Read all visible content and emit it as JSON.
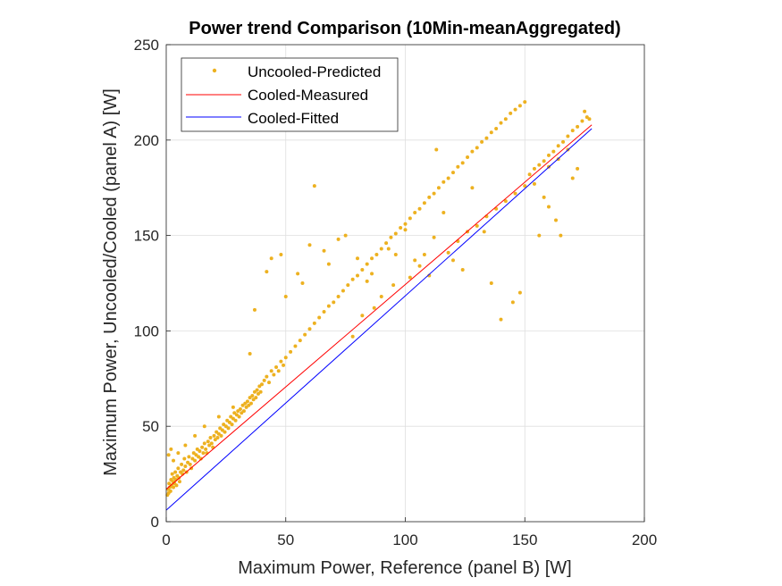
{
  "chart_data": {
    "type": "scatter",
    "title": "Power trend Comparison (10Min-meanAggregated)",
    "xlabel": "Maximum Power, Reference (panel B) [W]",
    "ylabel": "Maximum Power, Uncooled/Cooled (panel A) [W]",
    "xlim": [
      0,
      200
    ],
    "ylim": [
      0,
      250
    ],
    "xticks": [
      0,
      50,
      100,
      150,
      200
    ],
    "yticks": [
      0,
      50,
      100,
      150,
      200,
      250
    ],
    "grid": true,
    "legend_position": "top-left",
    "series": [
      {
        "name": "Uncooled-Predicted",
        "kind": "scatter",
        "color": "#EDB120",
        "points": [
          [
            0.5,
            14
          ],
          [
            0.8,
            17
          ],
          [
            1.0,
            15
          ],
          [
            1.2,
            20
          ],
          [
            1.5,
            18
          ],
          [
            1.8,
            16
          ],
          [
            2.0,
            22
          ],
          [
            2.2,
            19
          ],
          [
            2.5,
            25
          ],
          [
            2.8,
            21
          ],
          [
            3.0,
            18
          ],
          [
            3.2,
            23
          ],
          [
            3.5,
            20
          ],
          [
            3.8,
            26
          ],
          [
            4.0,
            22
          ],
          [
            4.3,
            19
          ],
          [
            4.6,
            24
          ],
          [
            5.0,
            28
          ],
          [
            5.3,
            23
          ],
          [
            5.6,
            21
          ],
          [
            6.0,
            26
          ],
          [
            6.4,
            30
          ],
          [
            6.8,
            25
          ],
          [
            7.2,
            27
          ],
          [
            7.6,
            33
          ],
          [
            8.0,
            29
          ],
          [
            8.5,
            26
          ],
          [
            9.0,
            31
          ],
          [
            9.5,
            34
          ],
          [
            10.0,
            30
          ],
          [
            10.5,
            28
          ],
          [
            11.0,
            33
          ],
          [
            11.5,
            36
          ],
          [
            12.0,
            32
          ],
          [
            12.5,
            35
          ],
          [
            13.0,
            38
          ],
          [
            13.5,
            34
          ],
          [
            14.0,
            37
          ],
          [
            14.5,
            33
          ],
          [
            15.0,
            39
          ],
          [
            15.5,
            36
          ],
          [
            16.0,
            41
          ],
          [
            16.5,
            38
          ],
          [
            17.0,
            36
          ],
          [
            17.5,
            42
          ],
          [
            18.0,
            40
          ],
          [
            18.5,
            44
          ],
          [
            19.0,
            41
          ],
          [
            19.5,
            39
          ],
          [
            20.0,
            45
          ],
          [
            20.5,
            43
          ],
          [
            21.0,
            47
          ],
          [
            21.5,
            44
          ],
          [
            22.0,
            46
          ],
          [
            22.5,
            49
          ],
          [
            23.0,
            45
          ],
          [
            23.5,
            48
          ],
          [
            24.0,
            51
          ],
          [
            24.5,
            47
          ],
          [
            25.0,
            50
          ],
          [
            25.5,
            53
          ],
          [
            26.0,
            49
          ],
          [
            26.5,
            52
          ],
          [
            27.0,
            55
          ],
          [
            27.5,
            51
          ],
          [
            28.0,
            54
          ],
          [
            28.5,
            57
          ],
          [
            29.0,
            53
          ],
          [
            29.5,
            56
          ],
          [
            30.0,
            58
          ],
          [
            30.5,
            55
          ],
          [
            31.0,
            59
          ],
          [
            31.5,
            57
          ],
          [
            32.0,
            61
          ],
          [
            32.5,
            58
          ],
          [
            33.0,
            62
          ],
          [
            33.5,
            60
          ],
          [
            34.0,
            63
          ],
          [
            34.5,
            61
          ],
          [
            35.0,
            65
          ],
          [
            35.5,
            62
          ],
          [
            36.0,
            66
          ],
          [
            36.5,
            64
          ],
          [
            37.0,
            68
          ],
          [
            37.5,
            65
          ],
          [
            38.0,
            69
          ],
          [
            38.5,
            67
          ],
          [
            39.0,
            71
          ],
          [
            39.5,
            68
          ],
          [
            40.0,
            72
          ],
          [
            41,
            74
          ],
          [
            42,
            76
          ],
          [
            43,
            73
          ],
          [
            44,
            79
          ],
          [
            45,
            77
          ],
          [
            46,
            81
          ],
          [
            47,
            79
          ],
          [
            48,
            84
          ],
          [
            49,
            82
          ],
          [
            50,
            86
          ],
          [
            52,
            89
          ],
          [
            54,
            92
          ],
          [
            56,
            95
          ],
          [
            58,
            98
          ],
          [
            60,
            101
          ],
          [
            62,
            104
          ],
          [
            64,
            107
          ],
          [
            66,
            110
          ],
          [
            68,
            113
          ],
          [
            70,
            115
          ],
          [
            72,
            118
          ],
          [
            74,
            121
          ],
          [
            76,
            124
          ],
          [
            78,
            127
          ],
          [
            80,
            129
          ],
          [
            82,
            132
          ],
          [
            84,
            135
          ],
          [
            86,
            138
          ],
          [
            88,
            140
          ],
          [
            90,
            143
          ],
          [
            92,
            146
          ],
          [
            94,
            149
          ],
          [
            96,
            151
          ],
          [
            98,
            154
          ],
          [
            100,
            156
          ],
          [
            102,
            159
          ],
          [
            104,
            162
          ],
          [
            106,
            164
          ],
          [
            108,
            167
          ],
          [
            110,
            170
          ],
          [
            112,
            172
          ],
          [
            114,
            175
          ],
          [
            116,
            178
          ],
          [
            118,
            180
          ],
          [
            120,
            183
          ],
          [
            122,
            186
          ],
          [
            124,
            188
          ],
          [
            126,
            191
          ],
          [
            128,
            194
          ],
          [
            130,
            196
          ],
          [
            132,
            199
          ],
          [
            134,
            201
          ],
          [
            136,
            204
          ],
          [
            138,
            206
          ],
          [
            140,
            209
          ],
          [
            142,
            211
          ],
          [
            144,
            214
          ],
          [
            146,
            216
          ],
          [
            148,
            218
          ],
          [
            150,
            220
          ],
          [
            152,
            182
          ],
          [
            154,
            185
          ],
          [
            156,
            187
          ],
          [
            158,
            189
          ],
          [
            160,
            192
          ],
          [
            162,
            194
          ],
          [
            164,
            197
          ],
          [
            166,
            199
          ],
          [
            168,
            202
          ],
          [
            170,
            205
          ],
          [
            172,
            207
          ],
          [
            174,
            210
          ],
          [
            176,
            212
          ],
          [
            177,
            211
          ],
          [
            175,
            215
          ],
          [
            1,
            35
          ],
          [
            2,
            38
          ],
          [
            3,
            32
          ],
          [
            5,
            36
          ],
          [
            8,
            40
          ],
          [
            12,
            45
          ],
          [
            16,
            50
          ],
          [
            22,
            55
          ],
          [
            28,
            60
          ],
          [
            35,
            88
          ],
          [
            37,
            111
          ],
          [
            42,
            131
          ],
          [
            44,
            138
          ],
          [
            48,
            140
          ],
          [
            50,
            118
          ],
          [
            55,
            130
          ],
          [
            57,
            125
          ],
          [
            60,
            145
          ],
          [
            62,
            176
          ],
          [
            66,
            142
          ],
          [
            68,
            135
          ],
          [
            72,
            148
          ],
          [
            75,
            150
          ],
          [
            80,
            138
          ],
          [
            84,
            126
          ],
          [
            86,
            130
          ],
          [
            93,
            143
          ],
          [
            96,
            140
          ],
          [
            100,
            153
          ],
          [
            104,
            137
          ],
          [
            108,
            140
          ],
          [
            112,
            149
          ],
          [
            113,
            195
          ],
          [
            116,
            162
          ],
          [
            120,
            137
          ],
          [
            124,
            132
          ],
          [
            128,
            175
          ],
          [
            130,
            155
          ],
          [
            133,
            152
          ],
          [
            136,
            125
          ],
          [
            140,
            106
          ],
          [
            145,
            115
          ],
          [
            148,
            120
          ],
          [
            156,
            150
          ],
          [
            158,
            170
          ],
          [
            160,
            165
          ],
          [
            163,
            158
          ],
          [
            165,
            150
          ],
          [
            170,
            180
          ],
          [
            172,
            185
          ],
          [
            78,
            97
          ],
          [
            82,
            108
          ],
          [
            87,
            112
          ],
          [
            90,
            118
          ],
          [
            95,
            124
          ],
          [
            102,
            128
          ],
          [
            106,
            134
          ],
          [
            110,
            129
          ],
          [
            118,
            141
          ],
          [
            122,
            147
          ],
          [
            126,
            152
          ],
          [
            134,
            160
          ],
          [
            138,
            164
          ],
          [
            142,
            168
          ],
          [
            146,
            172
          ],
          [
            150,
            176
          ],
          [
            154,
            177
          ],
          [
            160,
            186
          ],
          [
            164,
            190
          ],
          [
            168,
            195
          ]
        ]
      },
      {
        "name": "Cooled-Measured",
        "kind": "line",
        "color": "#FF0000",
        "x": [
          0,
          178
        ],
        "y": [
          17,
          208
        ]
      },
      {
        "name": "Cooled-Fitted",
        "kind": "line",
        "color": "#0000FF",
        "x": [
          0,
          178
        ],
        "y": [
          6,
          206
        ]
      }
    ]
  }
}
